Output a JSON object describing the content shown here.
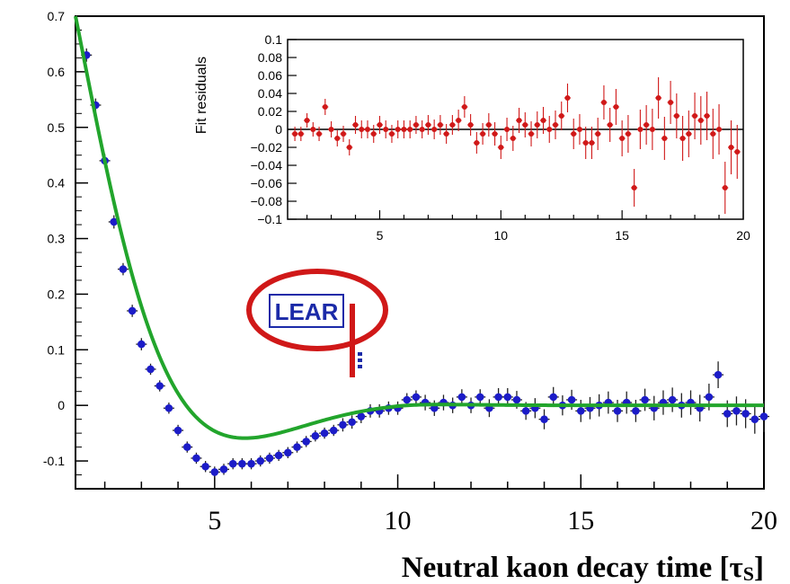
{
  "colors": {
    "main_points": "#1c1cc8",
    "fit_curve": "#22a52c",
    "inset_points": "#d01818",
    "logo_red": "#d01818",
    "logo_blue": "#1b2aa8"
  },
  "logo": {
    "text": "LEAR"
  },
  "chart_data": [
    {
      "type": "scatter",
      "xlabel": "Neutral kaon decay time [τS]",
      "ylabel": "",
      "xlim": [
        1.2,
        20
      ],
      "ylim": [
        -0.15,
        0.7
      ],
      "x_ticks": [
        5,
        10,
        15,
        20
      ],
      "y_ticks": [
        -0.1,
        0,
        0.1,
        0.2,
        0.3,
        0.4,
        0.5,
        0.6,
        0.7
      ],
      "y_tick_labels": [
        "-0.1",
        "0",
        "0.1",
        "0.2",
        "0.3",
        "0.4",
        "0.5",
        "0.6",
        "0.7"
      ],
      "series": [
        {
          "kind": "points",
          "x": [
            1.5,
            1.75,
            2.0,
            2.25,
            2.5,
            2.75,
            3.0,
            3.25,
            3.5,
            3.75,
            4.0,
            4.25,
            4.5,
            4.75,
            5.0,
            5.25,
            5.5,
            5.75,
            6.0,
            6.25,
            6.5,
            6.75,
            7.0,
            7.25,
            7.5,
            7.75,
            8.0,
            8.25,
            8.5,
            8.75,
            9.0,
            9.25,
            9.5,
            9.75,
            10.0,
            10.25,
            10.5,
            10.75,
            11.0,
            11.25,
            11.5,
            11.75,
            12.0,
            12.25,
            12.5,
            12.75,
            13.0,
            13.25,
            13.5,
            13.75,
            14.0,
            14.25,
            14.5,
            14.75,
            15.0,
            15.25,
            15.5,
            15.75,
            16.0,
            16.25,
            16.5,
            16.75,
            17.0,
            17.25,
            17.5,
            17.75,
            18.0,
            18.25,
            18.5,
            18.75,
            19.0,
            19.25,
            19.5,
            19.75,
            20.0
          ],
          "y": [
            0.63,
            0.54,
            0.44,
            0.33,
            0.245,
            0.17,
            0.11,
            0.065,
            0.035,
            -0.005,
            -0.045,
            -0.075,
            -0.095,
            -0.11,
            -0.12,
            -0.115,
            -0.105,
            -0.105,
            -0.105,
            -0.1,
            -0.095,
            -0.09,
            -0.085,
            -0.075,
            -0.065,
            -0.055,
            -0.05,
            -0.045,
            -0.035,
            -0.03,
            -0.02,
            -0.01,
            -0.01,
            -0.005,
            -0.005,
            0.01,
            0.015,
            0.005,
            -0.005,
            0.005,
            0.0,
            0.015,
            0.0,
            0.015,
            -0.005,
            0.015,
            0.015,
            0.01,
            -0.01,
            -0.005,
            -0.025,
            0.015,
            0.0,
            0.01,
            -0.01,
            -0.005,
            0.0,
            0.005,
            -0.01,
            0.005,
            -0.01,
            0.01,
            -0.005,
            0.005,
            0.01,
            0.0,
            0.005,
            -0.005,
            0.015,
            0.055,
            -0.015,
            -0.01,
            -0.015,
            -0.025,
            -0.02
          ],
          "yerr": [
            0.012,
            0.012,
            0.012,
            0.012,
            0.011,
            0.011,
            0.011,
            0.01,
            0.01,
            0.01,
            0.01,
            0.01,
            0.01,
            0.01,
            0.01,
            0.01,
            0.01,
            0.01,
            0.01,
            0.01,
            0.01,
            0.01,
            0.01,
            0.01,
            0.01,
            0.01,
            0.01,
            0.01,
            0.012,
            0.012,
            0.012,
            0.012,
            0.012,
            0.012,
            0.012,
            0.012,
            0.012,
            0.014,
            0.014,
            0.014,
            0.014,
            0.014,
            0.014,
            0.014,
            0.016,
            0.016,
            0.016,
            0.016,
            0.016,
            0.018,
            0.018,
            0.018,
            0.018,
            0.018,
            0.02,
            0.02,
            0.02,
            0.02,
            0.02,
            0.02,
            0.02,
            0.02,
            0.022,
            0.022,
            0.022,
            0.022,
            0.022,
            0.024,
            0.024,
            0.024,
            0.024,
            0.026,
            0.026,
            0.026,
            0.028
          ]
        },
        {
          "kind": "fit",
          "model": "0.7*exp(-0.5*(t-1.2))*cos(0.53*(t-1.2)) + damped tail"
        }
      ]
    },
    {
      "type": "scatter",
      "ylabel": "Fit residuals",
      "xlim": [
        1.2,
        20
      ],
      "ylim": [
        -0.1,
        0.1
      ],
      "x_ticks": [
        5,
        10,
        15,
        20
      ],
      "y_ticks": [
        -0.1,
        -0.08,
        -0.06,
        -0.04,
        -0.02,
        0,
        0.02,
        0.04,
        0.06,
        0.08,
        0.1
      ],
      "y_tick_labels": [
        "−0.1",
        "−0.08",
        "−0.06",
        "−0.04",
        "−0.02",
        "0",
        "0.02",
        "0.04",
        "0.06",
        "0.08",
        "0.1"
      ],
      "series": [
        {
          "kind": "points",
          "x": [
            1.5,
            1.75,
            2.0,
            2.25,
            2.5,
            2.75,
            3.0,
            3.25,
            3.5,
            3.75,
            4.0,
            4.25,
            4.5,
            4.75,
            5.0,
            5.25,
            5.5,
            5.75,
            6.0,
            6.25,
            6.5,
            6.75,
            7.0,
            7.25,
            7.5,
            7.75,
            8.0,
            8.25,
            8.5,
            8.75,
            9.0,
            9.25,
            9.5,
            9.75,
            10.0,
            10.25,
            10.5,
            10.75,
            11.0,
            11.25,
            11.5,
            11.75,
            12.0,
            12.25,
            12.5,
            12.75,
            13.0,
            13.25,
            13.5,
            13.75,
            14.0,
            14.25,
            14.5,
            14.75,
            15.0,
            15.25,
            15.5,
            15.75,
            16.0,
            16.25,
            16.5,
            16.75,
            17.0,
            17.25,
            17.5,
            17.75,
            18.0,
            18.25,
            18.5,
            18.75,
            19.0,
            19.25,
            19.5,
            19.75
          ],
          "y": [
            -0.005,
            -0.005,
            0.01,
            0.0,
            -0.005,
            0.025,
            0.0,
            -0.01,
            -0.005,
            -0.02,
            0.005,
            0.0,
            0.0,
            -0.005,
            0.005,
            0.0,
            -0.005,
            0.0,
            0.0,
            0.0,
            0.005,
            0.0,
            0.005,
            0.0,
            0.005,
            -0.005,
            0.005,
            0.01,
            0.025,
            0.005,
            -0.015,
            -0.005,
            0.005,
            -0.005,
            -0.02,
            0.0,
            -0.01,
            0.01,
            0.005,
            -0.005,
            0.005,
            0.01,
            0.0,
            0.005,
            0.015,
            0.035,
            -0.005,
            0.0,
            -0.015,
            -0.015,
            -0.005,
            0.03,
            0.005,
            0.025,
            -0.01,
            -0.005,
            -0.065,
            0.0,
            0.005,
            0.0,
            0.035,
            -0.01,
            0.03,
            0.015,
            -0.01,
            -0.005,
            0.015,
            0.01,
            0.015,
            -0.005,
            0.0,
            -0.065,
            -0.02,
            -0.025
          ],
          "yerr": [
            0.008,
            0.008,
            0.008,
            0.008,
            0.008,
            0.009,
            0.009,
            0.009,
            0.009,
            0.009,
            0.01,
            0.01,
            0.01,
            0.01,
            0.01,
            0.01,
            0.01,
            0.01,
            0.01,
            0.01,
            0.01,
            0.01,
            0.011,
            0.011,
            0.011,
            0.011,
            0.011,
            0.012,
            0.012,
            0.012,
            0.012,
            0.012,
            0.013,
            0.013,
            0.013,
            0.013,
            0.014,
            0.014,
            0.014,
            0.014,
            0.015,
            0.015,
            0.015,
            0.016,
            0.016,
            0.016,
            0.017,
            0.017,
            0.018,
            0.018,
            0.018,
            0.019,
            0.019,
            0.02,
            0.02,
            0.021,
            0.021,
            0.022,
            0.022,
            0.023,
            0.023,
            0.024,
            0.024,
            0.025,
            0.025,
            0.026,
            0.026,
            0.027,
            0.027,
            0.028,
            0.028,
            0.029,
            0.03,
            0.03
          ]
        }
      ]
    }
  ]
}
